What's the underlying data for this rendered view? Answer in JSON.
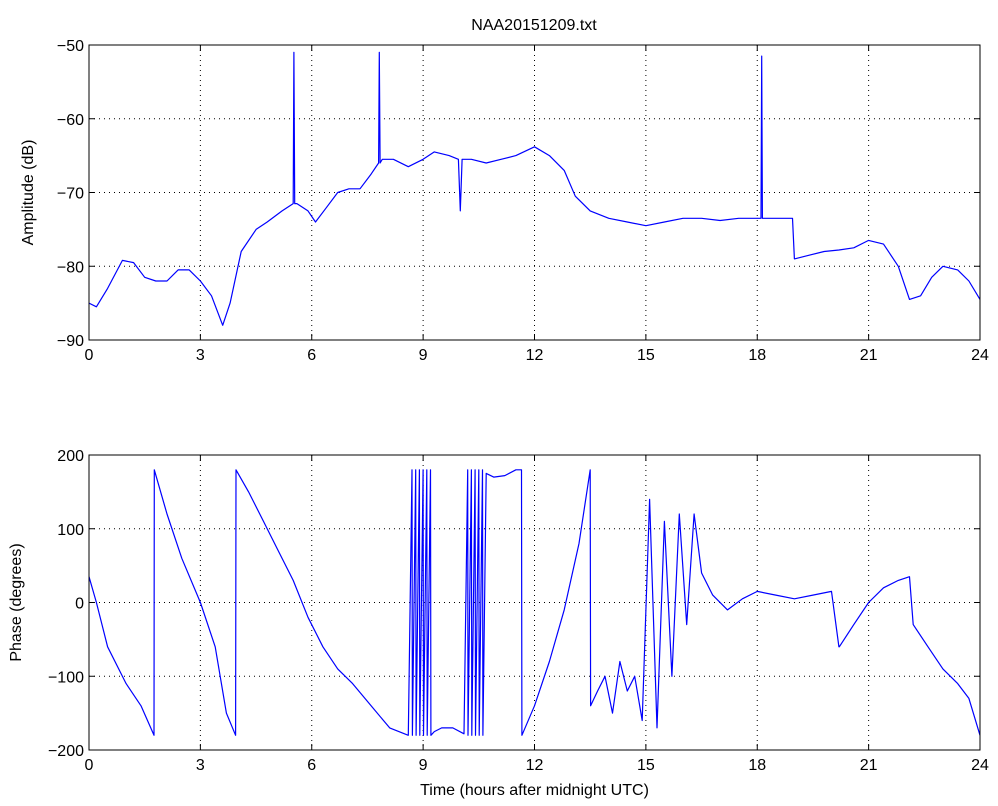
{
  "title": "NAA20151209.txt",
  "colors": {
    "series": "#0000ff",
    "axes": "#000000",
    "grid": "#000000",
    "background": "#ffffff"
  },
  "chart_data": [
    {
      "type": "line",
      "ylabel": "Amplitude (dB)",
      "xlabel": "",
      "xlim": [
        0,
        24
      ],
      "ylim": [
        -90,
        -50
      ],
      "xticks": [
        0,
        3,
        6,
        9,
        12,
        15,
        18,
        21,
        24
      ],
      "yticks": [
        -90,
        -80,
        -70,
        -60,
        -50
      ],
      "xtick_labels": [
        "0",
        "3",
        "6",
        "9",
        "12",
        "15",
        "18",
        "21",
        "24"
      ],
      "ytick_labels": [
        "−90",
        "−80",
        "−70",
        "−60",
        "−50"
      ],
      "grid": true,
      "series": [
        {
          "x": [
            0,
            0.2,
            0.5,
            0.9,
            1.2,
            1.5,
            1.8,
            2.1,
            2.4,
            2.7,
            3.0,
            3.3,
            3.6,
            3.8,
            4.1,
            4.5,
            4.8,
            5.2,
            5.5,
            5.52,
            5.54,
            5.6,
            5.9,
            6.1,
            6.4,
            6.7,
            7.0,
            7.3,
            7.6,
            7.8,
            7.82,
            7.84,
            7.9,
            8.2,
            8.6,
            9.0,
            9.3,
            9.7,
            9.95,
            10.0,
            10.05,
            10.3,
            10.7,
            11.1,
            11.5,
            12.0,
            12.4,
            12.8,
            13.1,
            13.5,
            14.0,
            14.5,
            15.0,
            15.5,
            16.0,
            16.5,
            17.0,
            17.5,
            18.0,
            18.1,
            18.12,
            18.14,
            18.2,
            18.6,
            18.95,
            19.0,
            19.4,
            19.8,
            20.2,
            20.6,
            21.0,
            21.4,
            21.8,
            22.1,
            22.4,
            22.7,
            23.0,
            23.4,
            23.7,
            24.0
          ],
          "y": [
            -85,
            -85.5,
            -83,
            -79.2,
            -79.5,
            -81.5,
            -82,
            -82,
            -80.5,
            -80.5,
            -82,
            -84,
            -88,
            -85,
            -78,
            -75,
            -74,
            -72.5,
            -71.5,
            -51,
            -71.5,
            -71.5,
            -72.5,
            -74,
            -72,
            -70,
            -69.5,
            -69.5,
            -67.5,
            -66,
            -51,
            -66,
            -65.5,
            -65.5,
            -66.5,
            -65.5,
            -64.5,
            -65,
            -65.5,
            -72.5,
            -65.5,
            -65.5,
            -66,
            -65.5,
            -65,
            -63.8,
            -65,
            -67,
            -70.5,
            -72.5,
            -73.5,
            -74,
            -74.5,
            -74,
            -73.5,
            -73.5,
            -73.8,
            -73.5,
            -73.5,
            -73.5,
            -51.5,
            -73.5,
            -73.5,
            -73.5,
            -73.5,
            -79,
            -78.5,
            -78,
            -77.8,
            -77.5,
            -76.5,
            -77,
            -80,
            -84.5,
            -84,
            -81.5,
            -80,
            -80.5,
            -82,
            -84.5
          ]
        }
      ]
    },
    {
      "type": "line",
      "ylabel": "Phase (degrees)",
      "xlabel": "Time (hours after midnight UTC)",
      "xlim": [
        0,
        24
      ],
      "ylim": [
        -200,
        200
      ],
      "xticks": [
        0,
        3,
        6,
        9,
        12,
        15,
        18,
        21,
        24
      ],
      "yticks": [
        -200,
        -100,
        0,
        100,
        200
      ],
      "xtick_labels": [
        "0",
        "3",
        "6",
        "9",
        "12",
        "15",
        "18",
        "21",
        "24"
      ],
      "ytick_labels": [
        "−200",
        "−100",
        "0",
        "100",
        "200"
      ],
      "grid": true,
      "series": [
        {
          "x": [
            0,
            0.2,
            0.5,
            1.0,
            1.4,
            1.75,
            1.76,
            2.1,
            2.5,
            3.0,
            3.4,
            3.7,
            3.95,
            3.96,
            4.3,
            4.7,
            5.1,
            5.5,
            5.9,
            6.3,
            6.7,
            7.1,
            7.6,
            8.1,
            8.6,
            8.7,
            8.71,
            8.8,
            8.81,
            8.9,
            8.91,
            9.0,
            9.01,
            9.1,
            9.11,
            9.2,
            9.21,
            9.3,
            9.5,
            9.8,
            10.1,
            10.2,
            10.21,
            10.3,
            10.31,
            10.4,
            10.41,
            10.5,
            10.51,
            10.6,
            10.61,
            10.7,
            10.9,
            11.2,
            11.5,
            11.65,
            11.66,
            12.0,
            12.4,
            12.8,
            13.2,
            13.5,
            13.51,
            13.7,
            13.9,
            14.1,
            14.3,
            14.5,
            14.7,
            14.9,
            15.1,
            15.3,
            15.5,
            15.7,
            15.9,
            16.1,
            16.3,
            16.5,
            16.8,
            17.2,
            17.6,
            18.0,
            18.5,
            19.0,
            19.5,
            20.0,
            20.2,
            20.21,
            20.6,
            21.0,
            21.4,
            21.8,
            22.1,
            22.2,
            22.6,
            23.0,
            23.4,
            23.7,
            24.0
          ],
          "y": [
            35,
            0,
            -60,
            -110,
            -140,
            -180,
            180,
            120,
            60,
            0,
            -60,
            -150,
            -180,
            180,
            150,
            110,
            70,
            30,
            -20,
            -60,
            -90,
            -110,
            -140,
            -170,
            -180,
            180,
            -180,
            180,
            -180,
            180,
            -180,
            180,
            -180,
            180,
            -180,
            180,
            -180,
            -175,
            -170,
            -170,
            -178,
            180,
            -180,
            180,
            -180,
            180,
            -180,
            180,
            -180,
            180,
            -180,
            175,
            170,
            172,
            180,
            180,
            -180,
            -140,
            -80,
            -10,
            80,
            180,
            -140,
            -120,
            -100,
            -150,
            -80,
            -120,
            -100,
            -160,
            140,
            -170,
            110,
            -100,
            120,
            -30,
            120,
            40,
            10,
            -10,
            5,
            15,
            10,
            5,
            10,
            15,
            -60,
            -60,
            -30,
            0,
            20,
            30,
            35,
            -30,
            -60,
            -90,
            -110,
            -130,
            -180
          ]
        }
      ]
    }
  ]
}
